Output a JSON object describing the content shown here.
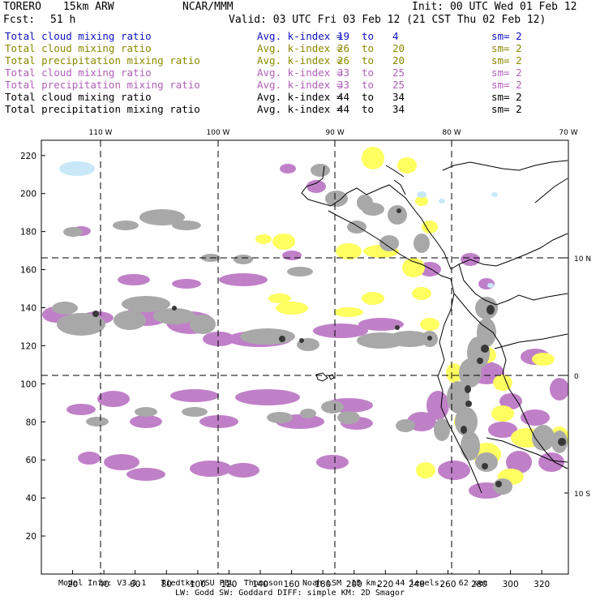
{
  "header": {
    "model_name": "TORERO",
    "resolution": "15km ARW",
    "institution": "NCAR/MMM",
    "init": "Init: 00 UTC Wed 01 Feb 12",
    "fcst_label": "Fcst:",
    "fcst_hours": "51 h",
    "valid": "Valid: 03 UTC Fri 03 Feb 12 (21 CST Thu 02 Feb 12)"
  },
  "legend": [
    {
      "field": "Total cloud mixing ratio",
      "index": "Avg. k-index =",
      "from": "19",
      "to_word": "to",
      "to": "4",
      "sm": "sm= 2",
      "color": "#1010c0"
    },
    {
      "field": "Total cloud mixing ratio",
      "index": "Avg. k-index =",
      "from": "26",
      "to_word": "to",
      "to": "20",
      "sm": "sm= 2",
      "color": "#8a8a00"
    },
    {
      "field": "Total precipitation mixing ratio",
      "index": "Avg. k-index =",
      "from": "26",
      "to_word": "to",
      "to": "20",
      "sm": "sm= 2",
      "color": "#8a8a00"
    },
    {
      "field": "Total cloud mixing ratio",
      "index": "Avg. k-index =",
      "from": "33",
      "to_word": "to",
      "to": "25",
      "sm": "sm= 2",
      "color": "#b060b8"
    },
    {
      "field": "Total precipitation mixing ratio",
      "index": "Avg. k-index =",
      "from": "33",
      "to_word": "to",
      "to": "25",
      "sm": "sm= 2",
      "color": "#b060b8"
    },
    {
      "field": "Total cloud mixing ratio",
      "index": "Avg. k-index =",
      "from": "44",
      "to_word": "to",
      "to": "34",
      "sm": "sm= 2",
      "color": "#000000"
    },
    {
      "field": "Total precipitation mixing ratio",
      "index": "Avg. k-index =",
      "from": "44",
      "to_word": "to",
      "to": "34",
      "sm": "sm= 2",
      "color": "#000000"
    }
  ],
  "map": {
    "lon_labels": [
      "110 W",
      "100 W",
      "90 W",
      "80 W",
      "70 W"
    ],
    "lat_labels": [
      "10 N",
      "0",
      "10 S"
    ],
    "x_ticks": [
      "20",
      "40",
      "60",
      "80",
      "100",
      "120",
      "140",
      "160",
      "180",
      "200",
      "220",
      "240",
      "260",
      "280",
      "300",
      "320"
    ],
    "y_ticks": [
      "220",
      "200",
      "180",
      "160",
      "140",
      "120",
      "100",
      "80",
      "60",
      "40",
      "20"
    ],
    "colors": {
      "purple": "#c080c8",
      "yellow": "#ffff60",
      "gray": "#a8a8a8",
      "dark": "#383838",
      "lightblue": "#c8e8f8"
    }
  },
  "footer": {
    "line1": "Model Info: V3.3.1   Tiedtke YSU PBL  Thompson    Noah LSM  15 km,   44 levels,   62 sec",
    "line2": "LW: Godd SW: Goddard DIFF: simple KM: 2D Smagor"
  }
}
